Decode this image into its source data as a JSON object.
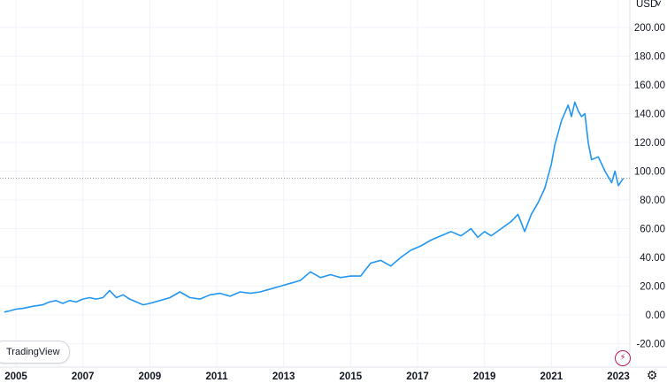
{
  "currency_label": "USD",
  "chart_data": {
    "type": "line",
    "title": "",
    "xlabel": "",
    "ylabel": "",
    "ylim": [
      -28,
      218
    ],
    "xlim": [
      2004.6,
      2023.3
    ],
    "grid": true,
    "y_ticks": [
      -20,
      0,
      20,
      40,
      60,
      80,
      100,
      120,
      140,
      160,
      180,
      200
    ],
    "y_tick_labels": [
      "-20.00",
      "0.00",
      "20.00",
      "40.00",
      "60.00",
      "80.00",
      "100.00",
      "120.00",
      "140.00",
      "160.00",
      "180.00",
      "200.00"
    ],
    "x_ticks": [
      2005,
      2007,
      2009,
      2011,
      2013,
      2015,
      2017,
      2019,
      2021,
      2023
    ],
    "x_tick_labels": [
      "2005",
      "2007",
      "2009",
      "2011",
      "2013",
      "2015",
      "2017",
      "2019",
      "2021",
      "2023"
    ],
    "reference_line": 95,
    "series": [
      {
        "color": "#2196f3",
        "x": [
          2004.65,
          2004.85,
          2005.0,
          2005.2,
          2005.5,
          2005.8,
          2006.0,
          2006.2,
          2006.4,
          2006.6,
          2006.8,
          2007.0,
          2007.2,
          2007.4,
          2007.6,
          2007.8,
          2008.0,
          2008.2,
          2008.4,
          2008.6,
          2008.8,
          2009.0,
          2009.3,
          2009.6,
          2009.9,
          2010.2,
          2010.5,
          2010.8,
          2011.1,
          2011.4,
          2011.7,
          2012.0,
          2012.3,
          2012.6,
          2012.9,
          2013.2,
          2013.5,
          2013.8,
          2014.1,
          2014.4,
          2014.7,
          2015.0,
          2015.3,
          2015.6,
          2015.9,
          2016.2,
          2016.5,
          2016.8,
          2017.1,
          2017.4,
          2017.7,
          2018.0,
          2018.3,
          2018.6,
          2018.8,
          2019.0,
          2019.2,
          2019.5,
          2019.8,
          2020.0,
          2020.2,
          2020.4,
          2020.6,
          2020.8,
          2021.0,
          2021.1,
          2021.3,
          2021.5,
          2021.6,
          2021.7,
          2021.8,
          2021.9,
          2022.0,
          2022.1,
          2022.2,
          2022.4,
          2022.6,
          2022.7,
          2022.8,
          2022.9,
          2023.0,
          2023.15
        ],
        "y": [
          2,
          3,
          4,
          4.5,
          6,
          7,
          9,
          10,
          8,
          10,
          9,
          11,
          12,
          11,
          12,
          17,
          12,
          14,
          11,
          9,
          7,
          8,
          10,
          12,
          16,
          12,
          11,
          14,
          15,
          13,
          16,
          15,
          16,
          18,
          20,
          22,
          24,
          30,
          26,
          28,
          26,
          27,
          27,
          36,
          38,
          34,
          40,
          45,
          48,
          52,
          55,
          58,
          55,
          60,
          54,
          58,
          55,
          60,
          65,
          70,
          58,
          70,
          78,
          88,
          105,
          118,
          135,
          146,
          138,
          148,
          142,
          138,
          140,
          120,
          108,
          110,
          100,
          96,
          92,
          100,
          90,
          95
        ]
      }
    ]
  }
}
